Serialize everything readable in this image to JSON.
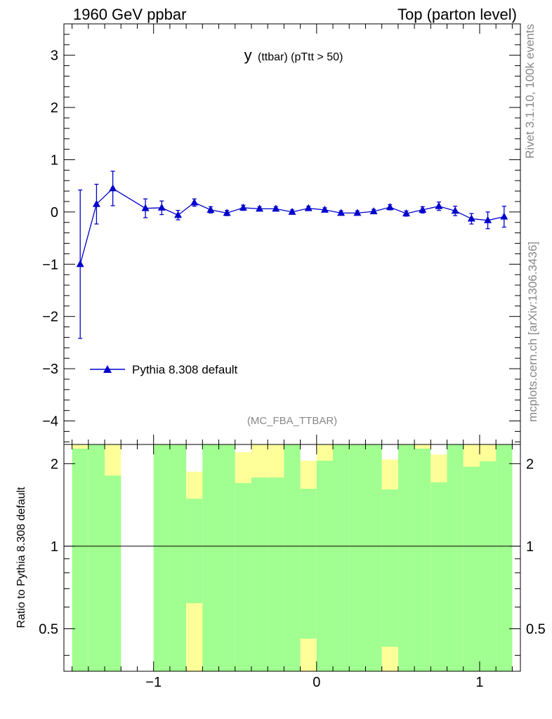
{
  "header": {
    "left": "1960 GeV ppbar",
    "right": "Top (parton level)"
  },
  "side": {
    "rivet": "Rivet 3.1.10,  100k events",
    "mcplots": "mcplots.cern.ch [arXiv:1306.3436]"
  },
  "plot_title": {
    "main": "y",
    "sub": "(ttbar) (pTtt > 50)"
  },
  "analysis_id": "(MC_FBA_TTBAR)",
  "legend": {
    "label": "Pythia 8.308 default"
  },
  "ratio_ylabel": "Ratio to Pythia 8.308 default",
  "colors": {
    "series": "#0000cc",
    "band_inner": "#a0ff90",
    "band_outer": "#ffff99",
    "axis": "#000000"
  },
  "chart_data": [
    {
      "type": "line",
      "title": "y (ttbar) (pTtt > 50)",
      "xlim": [
        -1.55,
        1.25
      ],
      "ylim": [
        -4.45,
        3.6
      ],
      "yticks": [
        3,
        2,
        1,
        0,
        -1,
        -2,
        -3,
        -4
      ],
      "ytick_labels": [
        "3",
        "2",
        "1",
        "0",
        "−1",
        "−2",
        "−3",
        "−4"
      ],
      "series": [
        {
          "name": "Pythia 8.308 default",
          "x": [
            -1.45,
            -1.35,
            -1.25,
            -1.05,
            -0.95,
            -0.85,
            -0.75,
            -0.65,
            -0.55,
            -0.45,
            -0.35,
            -0.25,
            -0.15,
            -0.05,
            0.05,
            0.15,
            0.25,
            0.35,
            0.45,
            0.55,
            0.65,
            0.75,
            0.85,
            0.95,
            1.05,
            1.15
          ],
          "y": [
            -1.0,
            0.15,
            0.45,
            0.07,
            0.08,
            -0.06,
            0.18,
            0.04,
            -0.02,
            0.08,
            0.06,
            0.06,
            0.0,
            0.07,
            0.04,
            -0.02,
            -0.02,
            0.01,
            0.09,
            -0.03,
            0.04,
            0.11,
            0.02,
            -0.13,
            -0.16,
            -0.09
          ],
          "err": [
            1.42,
            0.38,
            0.33,
            0.18,
            0.13,
            0.09,
            0.07,
            0.06,
            0.05,
            0.05,
            0.04,
            0.04,
            0.04,
            0.04,
            0.04,
            0.04,
            0.04,
            0.04,
            0.05,
            0.05,
            0.06,
            0.08,
            0.09,
            0.1,
            0.16,
            0.2
          ]
        }
      ]
    },
    {
      "type": "area",
      "ylabel": "Ratio to Pythia 8.308 default",
      "xlim": [
        -1.55,
        1.25
      ],
      "ylim": [
        0.35,
        2.35
      ],
      "xticks": [
        -1,
        0,
        1
      ],
      "xtick_labels": [
        "−1",
        "0",
        "1"
      ],
      "yticks": [
        2,
        1,
        0.5
      ],
      "ytick_labels": [
        "2",
        "1",
        "0.5"
      ],
      "reference_line": 1,
      "bins": [
        {
          "x0": -1.5,
          "x1": -1.4,
          "inner": [
            0.0,
            2.27
          ],
          "outer": [
            0.0,
            2.35
          ]
        },
        {
          "x0": -1.4,
          "x1": -1.3,
          "inner": [
            0.0,
            2.35
          ],
          "outer": [
            0.0,
            2.35
          ]
        },
        {
          "x0": -1.3,
          "x1": -1.2,
          "inner": [
            0.0,
            1.81
          ],
          "outer": [
            0.0,
            2.35
          ]
        },
        {
          "x0": -1.0,
          "x1": -0.9,
          "inner": [
            0.0,
            2.35
          ],
          "outer": [
            0.0,
            2.35
          ]
        },
        {
          "x0": -0.9,
          "x1": -0.8,
          "inner": [
            0.0,
            2.35
          ],
          "outer": [
            0.0,
            2.35
          ]
        },
        {
          "x0": -0.8,
          "x1": -0.7,
          "inner": [
            0.62,
            1.49
          ],
          "outer": [
            0.0,
            1.87
          ]
        },
        {
          "x0": -0.7,
          "x1": -0.6,
          "inner": [
            0.0,
            2.35
          ],
          "outer": [
            0.0,
            2.35
          ]
        },
        {
          "x0": -0.6,
          "x1": -0.5,
          "inner": [
            0.0,
            2.35
          ],
          "outer": [
            0.0,
            2.35
          ]
        },
        {
          "x0": -0.5,
          "x1": -0.4,
          "inner": [
            0.0,
            1.7
          ],
          "outer": [
            0.0,
            2.2
          ]
        },
        {
          "x0": -0.4,
          "x1": -0.3,
          "inner": [
            0.0,
            1.78
          ],
          "outer": [
            0.0,
            2.35
          ]
        },
        {
          "x0": -0.3,
          "x1": -0.2,
          "inner": [
            0.0,
            1.78
          ],
          "outer": [
            0.0,
            2.35
          ]
        },
        {
          "x0": -0.2,
          "x1": -0.1,
          "inner": [
            0.0,
            2.35
          ],
          "outer": [
            0.0,
            2.35
          ]
        },
        {
          "x0": -0.1,
          "x1": 0.0,
          "inner": [
            0.46,
            1.62
          ],
          "outer": [
            0.0,
            2.05
          ]
        },
        {
          "x0": 0.0,
          "x1": 0.1,
          "inner": [
            0.0,
            2.05
          ],
          "outer": [
            0.0,
            2.35
          ]
        },
        {
          "x0": 0.1,
          "x1": 0.2,
          "inner": [
            0.0,
            2.35
          ],
          "outer": [
            0.0,
            2.35
          ]
        },
        {
          "x0": 0.2,
          "x1": 0.3,
          "inner": [
            0.0,
            2.35
          ],
          "outer": [
            0.0,
            2.35
          ]
        },
        {
          "x0": 0.3,
          "x1": 0.4,
          "inner": [
            0.0,
            2.35
          ],
          "outer": [
            0.0,
            2.35
          ]
        },
        {
          "x0": 0.4,
          "x1": 0.5,
          "inner": [
            0.43,
            1.61
          ],
          "outer": [
            0.0,
            2.07
          ]
        },
        {
          "x0": 0.5,
          "x1": 0.6,
          "inner": [
            0.0,
            2.35
          ],
          "outer": [
            0.0,
            2.35
          ]
        },
        {
          "x0": 0.6,
          "x1": 0.7,
          "inner": [
            0.0,
            2.27
          ],
          "outer": [
            0.0,
            2.35
          ]
        },
        {
          "x0": 0.7,
          "x1": 0.8,
          "inner": [
            0.0,
            1.71
          ],
          "outer": [
            0.0,
            2.16
          ]
        },
        {
          "x0": 0.8,
          "x1": 0.9,
          "inner": [
            0.0,
            2.35
          ],
          "outer": [
            0.0,
            2.35
          ]
        },
        {
          "x0": 0.9,
          "x1": 1.0,
          "inner": [
            0.0,
            1.95
          ],
          "outer": [
            0.0,
            2.35
          ]
        },
        {
          "x0": 1.0,
          "x1": 1.1,
          "inner": [
            0.0,
            2.04
          ],
          "outer": [
            0.0,
            2.35
          ]
        },
        {
          "x0": 1.1,
          "x1": 1.2,
          "inner": [
            0.0,
            2.35
          ],
          "outer": [
            0.0,
            2.35
          ]
        }
      ]
    }
  ]
}
